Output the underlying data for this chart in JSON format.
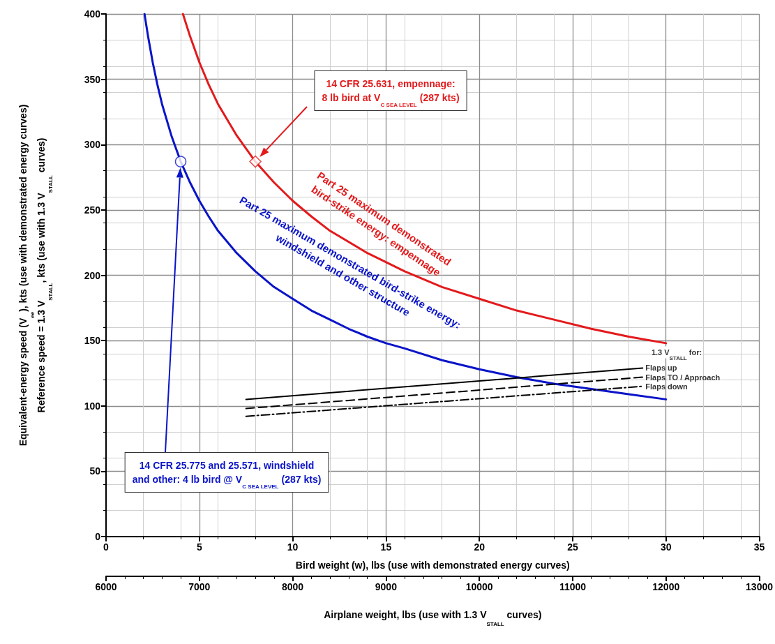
{
  "chart_data": {
    "type": "line",
    "xlabel": "Bird weight (w), lbs (use with demonstrated energy curves)",
    "x2label": "Airplane weight, lbs (use with 1.3 V$_{STALL}$ curves)",
    "ylabel": "Equivalent-energy speed (V$_{ee}$), kts (use with demonstrated energy curves)\nReference speed = 1.3 V$_{STALL}$, kts (use with 1.3 V$_{STALL}$ curves)",
    "xlim": [
      0,
      35
    ],
    "xticks": [
      0,
      5,
      10,
      15,
      20,
      25,
      30,
      35
    ],
    "x2lim": [
      6000,
      13000
    ],
    "x2ticks": [
      6000,
      7000,
      8000,
      9000,
      10000,
      11000,
      12000,
      13000
    ],
    "ylim": [
      0,
      400
    ],
    "yticks": [
      0,
      50,
      100,
      150,
      200,
      250,
      300,
      350,
      400
    ],
    "grid": true,
    "legend": false,
    "marker": "none",
    "series": [
      {
        "color": "#e31a1c",
        "line_style": "solid",
        "x": [
          4.12,
          4.5,
          5,
          5.5,
          6,
          7,
          8,
          9,
          10,
          11,
          12,
          14,
          16,
          18,
          20,
          22,
          24,
          26,
          28,
          30
        ],
        "values": [
          400,
          383,
          363,
          346,
          331,
          307,
          287,
          271,
          257,
          245,
          234,
          217,
          203,
          191,
          182,
          173,
          166,
          159,
          153,
          148
        ]
      },
      {
        "color": "#0a14c8",
        "line_style": "solid",
        "x": [
          2.06,
          2.25,
          2.5,
          2.75,
          3,
          3.5,
          4,
          4.5,
          5,
          5.5,
          6,
          7,
          8,
          9,
          10,
          11,
          12,
          13,
          14,
          15,
          16,
          18,
          20,
          22,
          24,
          26,
          28,
          30
        ],
        "values": [
          400,
          383,
          363,
          346,
          331,
          307,
          287,
          271,
          257,
          245,
          234,
          217,
          203,
          191,
          182,
          173,
          166,
          159,
          153,
          148,
          144,
          135,
          128,
          122,
          117,
          113,
          109,
          105
        ]
      },
      {
        "name": "Flaps up",
        "color": "#000000",
        "line_style": "solid",
        "axis": "x2",
        "x": [
          7500,
          11750
        ],
        "values": [
          105,
          129
        ]
      },
      {
        "name": "Flaps TO / Approach",
        "color": "#000000",
        "line_style": "dashed",
        "axis": "x2",
        "x": [
          7500,
          11750
        ],
        "values": [
          98,
          122
        ]
      },
      {
        "name": "Flaps down",
        "color": "#000000",
        "line_style": "dotted",
        "axis": "x2",
        "x": [
          7500,
          11750
        ],
        "values": [
          92,
          115
        ]
      },
      {
        "type": "scatter",
        "marker": "diamond",
        "color": "#e31a1c",
        "x": [
          8
        ],
        "values": [
          287
        ]
      },
      {
        "type": "scatter",
        "marker": "circle",
        "color": "#0a14c8",
        "x": [
          4
        ],
        "values": [
          287
        ]
      }
    ],
    "annotations": [
      "14 CFR 25.631, empennage:\n8 lb bird at V$_{C SEA LEVEL}$ (287 kts)",
      "14 CFR 25.775 and 25.571, windshield\nand other: 4 lb bird @ V$_{C SEA LEVEL}$ (287 kts)",
      "Part 25 maximum demonstrated\nbird-strike energy: empennage",
      "Part 25 maximum demonstrated bird-strike energy:\nwindshield and other structure",
      "1.3 V$_{STALL}$ for:"
    ]
  }
}
